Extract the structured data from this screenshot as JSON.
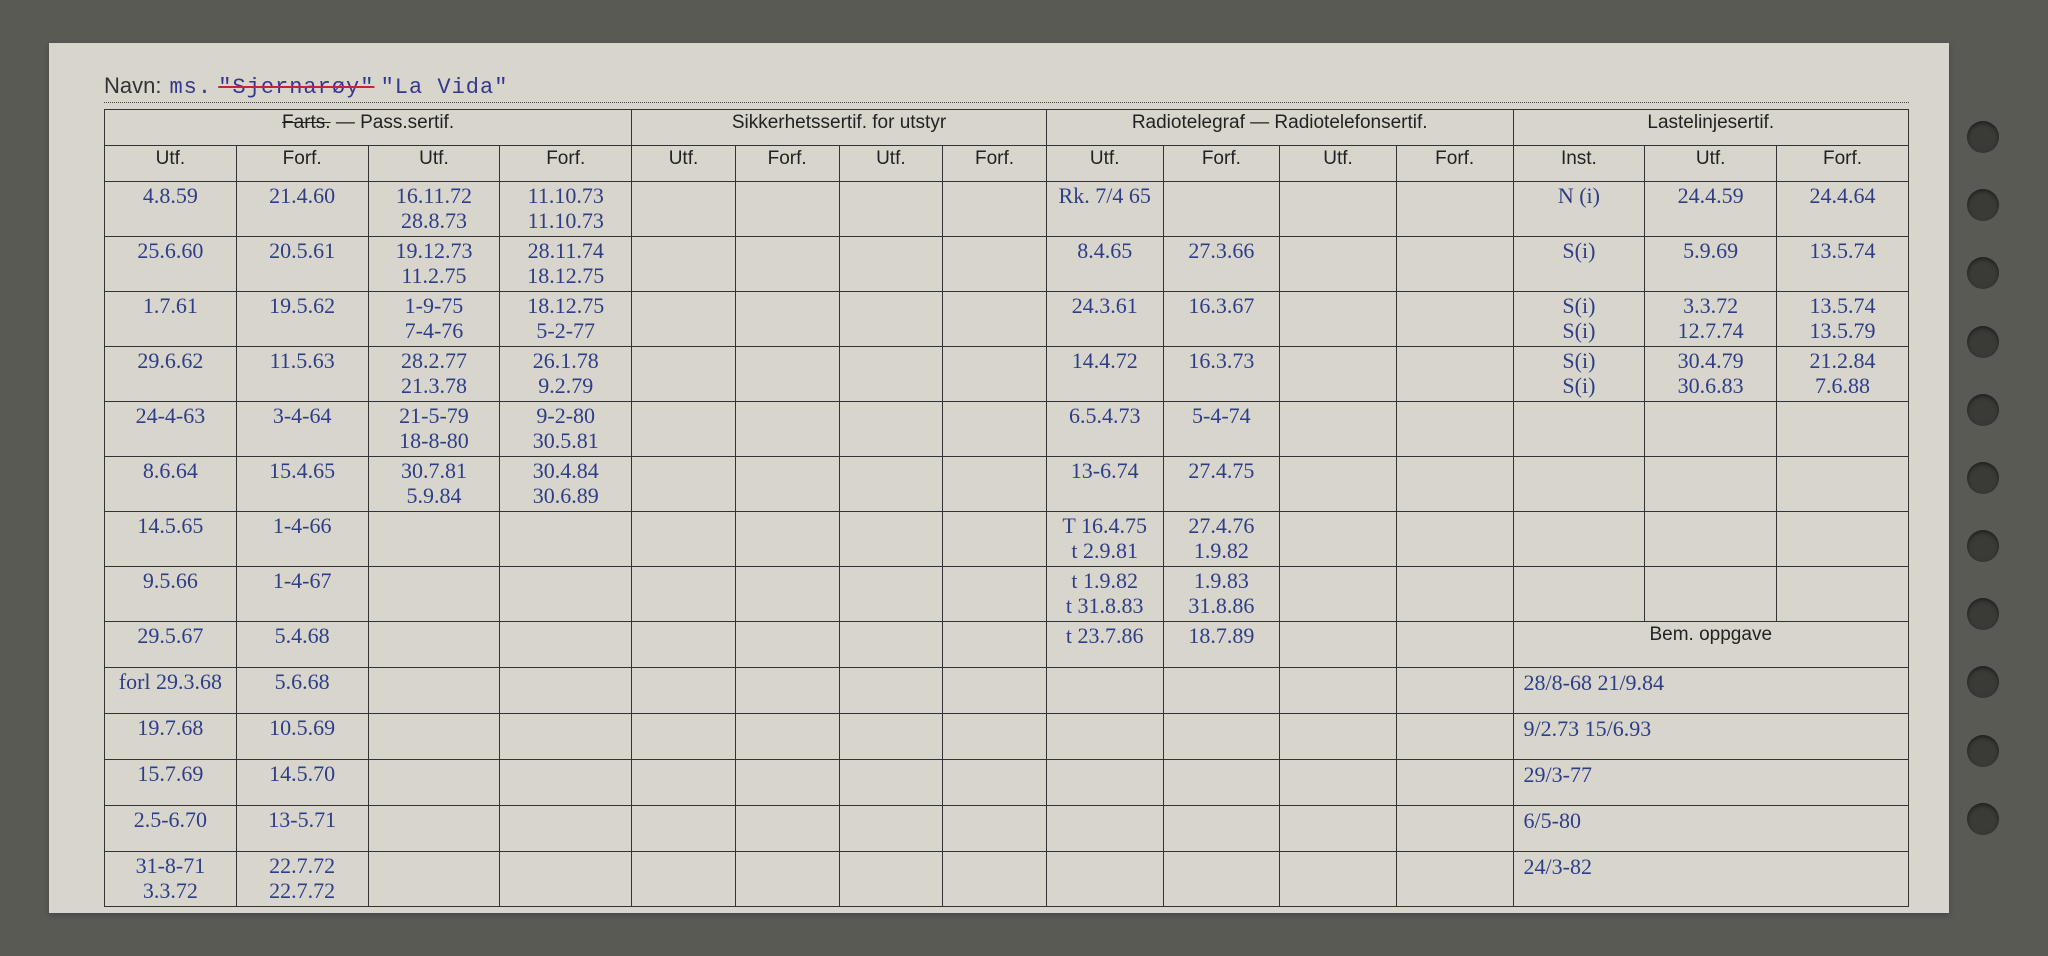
{
  "navn_label": "Navn:",
  "navn_prefix": "ms.",
  "navn_struck": "\"Sjernarøy\"",
  "navn_value": "\"La Vida\"",
  "groups": {
    "g1a": "Farts.",
    "g1b": " — Pass.sertif.",
    "g2": "Sikkerhetssertif. for utstyr",
    "g3": "Radiotelegraf — Radiotelefonsertif.",
    "g4": "Lastelinjesertif."
  },
  "heads": {
    "utf": "Utf.",
    "forf": "Forf.",
    "inst": "Inst."
  },
  "bem_label": "Bem. oppgave",
  "rows": [
    {
      "c": [
        "4.8.59",
        "21.4.60",
        "16.11.72\n28.8.73",
        "11.10.73\n11.10.73",
        "",
        "",
        "",
        "",
        "Rk. 7/4 65",
        "",
        "",
        "",
        "N (i)",
        "24.4.59",
        "24.4.64"
      ]
    },
    {
      "c": [
        "25.6.60",
        "20.5.61",
        "19.12.73\n11.2.75",
        "28.11.74\n18.12.75",
        "",
        "",
        "",
        "",
        "8.4.65",
        "27.3.66",
        "",
        "",
        "S(i)",
        "5.9.69",
        "13.5.74"
      ]
    },
    {
      "c": [
        "1.7.61",
        "19.5.62",
        "1-9-75\n7-4-76",
        "18.12.75\n5-2-77",
        "",
        "",
        "",
        "",
        "24.3.61",
        "16.3.67",
        "",
        "",
        "S(i)\nS(i)",
        "3.3.72\n12.7.74",
        "13.5.74\n13.5.79"
      ]
    },
    {
      "c": [
        "29.6.62",
        "11.5.63",
        "28.2.77\n21.3.78",
        "26.1.78\n9.2.79",
        "",
        "",
        "",
        "",
        "14.4.72",
        "16.3.73",
        "",
        "",
        "S(i)\nS(i)",
        "30.4.79\n30.6.83",
        "21.2.84\n7.6.88"
      ]
    },
    {
      "c": [
        "24-4-63",
        "3-4-64",
        "21-5-79\n18-8-80",
        "9-2-80\n30.5.81",
        "",
        "",
        "",
        "",
        "6.5.4.73",
        "5-4-74",
        "",
        "",
        "",
        "",
        ""
      ]
    },
    {
      "c": [
        "8.6.64",
        "15.4.65",
        "30.7.81\n5.9.84",
        "30.4.84\n30.6.89",
        "",
        "",
        "",
        "",
        "13-6.74",
        "27.4.75",
        "",
        "",
        "",
        "",
        ""
      ]
    },
    {
      "c": [
        "14.5.65",
        "1-4-66",
        "",
        "",
        "",
        "",
        "",
        "",
        "T 16.4.75\nt 2.9.81",
        "27.4.76\n1.9.82",
        "",
        "",
        "",
        "",
        ""
      ]
    },
    {
      "c": [
        "9.5.66",
        "1-4-67",
        "",
        "",
        "",
        "",
        "",
        "",
        "t 1.9.82\nt 31.8.83",
        "1.9.83\n31.8.86",
        "",
        "",
        "",
        "",
        ""
      ]
    },
    {
      "c": [
        "29.5.67",
        "5.4.68",
        "",
        "",
        "",
        "",
        "",
        "",
        "t 23.7.86",
        "18.7.89",
        "",
        "",
        ""
      ],
      "bem_start": true
    },
    {
      "c": [
        "forl 29.3.68",
        "5.6.68",
        "",
        "",
        "",
        "",
        "",
        "",
        "",
        "",
        "",
        ""
      ],
      "bem": "28/8-68  21/9.84"
    },
    {
      "c": [
        "19.7.68",
        "10.5.69",
        "",
        "",
        "",
        "",
        "",
        "",
        "",
        "",
        "",
        ""
      ],
      "bem": "9/2.73  15/6.93"
    },
    {
      "c": [
        "15.7.69",
        "14.5.70",
        "",
        "",
        "",
        "",
        "",
        "",
        "",
        "",
        "",
        ""
      ],
      "bem": "29/3-77"
    },
    {
      "c": [
        "2.5-6.70",
        "13-5.71",
        "",
        "",
        "",
        "",
        "",
        "",
        "",
        "",
        "",
        ""
      ],
      "bem": "6/5-80"
    },
    {
      "c": [
        "31-8-71\n3.3.72",
        "22.7.72\n22.7.72",
        "",
        "",
        "",
        "",
        "",
        "",
        "",
        "",
        "",
        ""
      ],
      "bem": "24/3-82"
    }
  ]
}
